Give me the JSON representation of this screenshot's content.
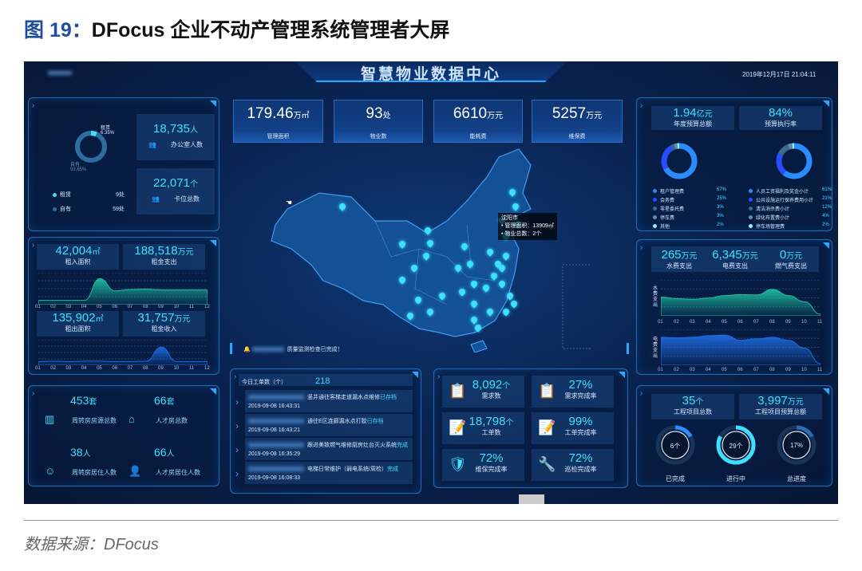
{
  "figure": {
    "prefix": "图 19：",
    "title": "DFocus 企业不动产管理系统管理者大屏",
    "source": "数据来源：DFocus"
  },
  "header": {
    "title": "智慧物业数据中心",
    "datetime": "2019年12月17日 21:04:11"
  },
  "colors": {
    "accent": "#3fe0ff",
    "bg": "#0a2453",
    "border": "#1f6fb5",
    "teal": "#1fbfa0",
    "blue": "#1e6be0"
  },
  "kpis": [
    {
      "value": "179.46",
      "unit": "万㎡",
      "label": "管理面积"
    },
    {
      "value": "93",
      "unit": "处",
      "label": "物业数"
    },
    {
      "value": "6610",
      "unit": "万元",
      "label": "能耗费"
    },
    {
      "value": "5257",
      "unit": "万元",
      "label": "维保费"
    }
  ],
  "ownership": {
    "rent_label": "租赁",
    "rent_pct": "6.35%",
    "own_label": "自有",
    "own_pct": "93.65%",
    "rent_count": "9处",
    "own_count": "59处",
    "rent_share": 6.35
  },
  "people": [
    {
      "value": "18,735",
      "unit": "人",
      "label": "办公室人数",
      "icon": "group-icon"
    },
    {
      "value": "22,071",
      "unit": "个",
      "label": "卡位总数",
      "icon": "group-icon"
    }
  ],
  "lease": {
    "rows": [
      {
        "value": "42,004",
        "unit": "㎡",
        "label": "租入面积"
      },
      {
        "value": "188,518",
        "unit": "万元",
        "label": "租金支出"
      },
      {
        "value": "135,902",
        "unit": "㎡",
        "label": "租出面积"
      },
      {
        "value": "31,757",
        "unit": "万元",
        "label": "租金收入"
      }
    ],
    "months": [
      "01",
      "02",
      "03",
      "04",
      "05",
      "06",
      "07",
      "08",
      "09",
      "10",
      "11",
      "12"
    ],
    "series_out": [
      0.1,
      0.1,
      0.1,
      0.1,
      0.9,
      0.45,
      0.5,
      0.52,
      0.48,
      0.48,
      0.48,
      0.48
    ],
    "series_in": [
      0.1,
      0.12,
      0.1,
      0.12,
      0.12,
      0.1,
      0.1,
      0.12,
      0.8,
      0.1,
      0.1,
      0.1
    ]
  },
  "housing": [
    {
      "value": "453",
      "unit": "套",
      "label": "周转房房源总数",
      "icon": "building-icon"
    },
    {
      "value": "66",
      "unit": "套",
      "label": "人才房总数",
      "icon": "house-icon"
    },
    {
      "value": "38",
      "unit": "人",
      "label": "周转房居住人数",
      "icon": "residents-icon"
    },
    {
      "value": "66",
      "unit": "人",
      "label": "人才房居住人数",
      "icon": "person-icon"
    }
  ],
  "map": {
    "tooltip_city": "沈阳市",
    "tooltip_area": "管理面积：13909㎡",
    "tooltip_count": "物业总数：2个",
    "alert": "质量监测检查已完成！"
  },
  "work_orders": {
    "label": "今日工单数（个）",
    "count": "218",
    "items": [
      {
        "text": "竖井通往客梯走道漏水点维修",
        "status": "已存档",
        "time": "2019-09-08 16:43:31"
      },
      {
        "text": "通往E区连廊漏水点打胶",
        "status": "已存档",
        "time": "2019-09-08 16:43:21"
      },
      {
        "text": "跟进美致燃气维修厨房灶台灭火系统",
        "status": "完成",
        "time": "2019-09-08 16:35:29"
      },
      {
        "text": "电梯日常维护（弱电系统/周检）",
        "status": "完成",
        "time": "2019-09-08 16:08:33"
      }
    ]
  },
  "service": [
    {
      "value": "8,092",
      "unit": "个",
      "label": "需求数",
      "icon": "clipboard-icon"
    },
    {
      "value": "27%",
      "unit": "",
      "label": "需求完成率",
      "icon": "clipboard-icon"
    },
    {
      "value": "18,798",
      "unit": "个",
      "label": "工单数",
      "icon": "work-order-icon"
    },
    {
      "value": "99%",
      "unit": "",
      "label": "工单完成率",
      "icon": "work-order-icon"
    },
    {
      "value": "72%",
      "unit": "",
      "label": "维保完成率",
      "icon": "shield-icon"
    },
    {
      "value": "72%",
      "unit": "",
      "label": "巡检完成率",
      "icon": "wrench-icon"
    }
  ],
  "budget": {
    "total": {
      "value": "1.94",
      "unit": "亿元",
      "label": "年度预算总额"
    },
    "rate": {
      "value": "84%",
      "label": "预算执行率"
    },
    "left": [
      {
        "name": "租户管理费",
        "pct": "67%",
        "color": "#2a8cff"
      },
      {
        "name": "会务费",
        "pct": "25%",
        "color": "#2a4cff"
      },
      {
        "name": "零星委托费",
        "pct": "3%",
        "color": "#3a6a90"
      },
      {
        "name": "停车费",
        "pct": "3%",
        "color": "#6a8aa8"
      },
      {
        "name": "其他",
        "pct": "2%",
        "color": "#8ff5ff"
      }
    ],
    "right": [
      {
        "name": "人员工资福利及奖金小计",
        "pct": "61%",
        "color": "#2a8cff"
      },
      {
        "name": "公共设施运行保养费用小计",
        "pct": "21%",
        "color": "#2a4cff"
      },
      {
        "name": "清洁消杀费小计",
        "pct": "12%",
        "color": "#3a6a90"
      },
      {
        "name": "绿化布置费小计",
        "pct": "4%",
        "color": "#6a8aa8"
      },
      {
        "name": "停车场管理费",
        "pct": "2%",
        "color": "#8ff5ff"
      }
    ]
  },
  "utilities": {
    "items": [
      {
        "value": "265",
        "unit": "万元",
        "label": "水费支出"
      },
      {
        "value": "6,345",
        "unit": "万元",
        "label": "电费支出"
      },
      {
        "value": "0",
        "unit": "万元",
        "label": "燃气费支出"
      }
    ],
    "water_axis": "水费支出",
    "elec_axis": "电费支出",
    "months": [
      "01",
      "02",
      "03",
      "04",
      "05",
      "06",
      "07",
      "08",
      "09",
      "10",
      "11"
    ],
    "water": [
      0.55,
      0.5,
      0.48,
      0.52,
      0.6,
      0.63,
      0.62,
      0.8,
      0.6,
      0.4,
      0.0
    ],
    "elec": [
      0.85,
      0.83,
      0.85,
      0.9,
      0.92,
      0.75,
      0.8,
      0.85,
      0.75,
      0.5,
      0.0
    ]
  },
  "projects": {
    "total": {
      "value": "35",
      "unit": "个",
      "label": "工程项目总数"
    },
    "budget": {
      "value": "3,997",
      "unit": "万元",
      "label": "工程项目预算总额"
    },
    "rings": [
      {
        "value": "6个",
        "label": "已完成",
        "fraction": 0.17,
        "color": "#2a8cff"
      },
      {
        "value": "29个",
        "label": "进行中",
        "fraction": 0.83,
        "color": "#3fe0ff"
      },
      {
        "value": "17%",
        "label": "总进度",
        "fraction": 0.17,
        "color": "#2a6cb0"
      }
    ]
  }
}
